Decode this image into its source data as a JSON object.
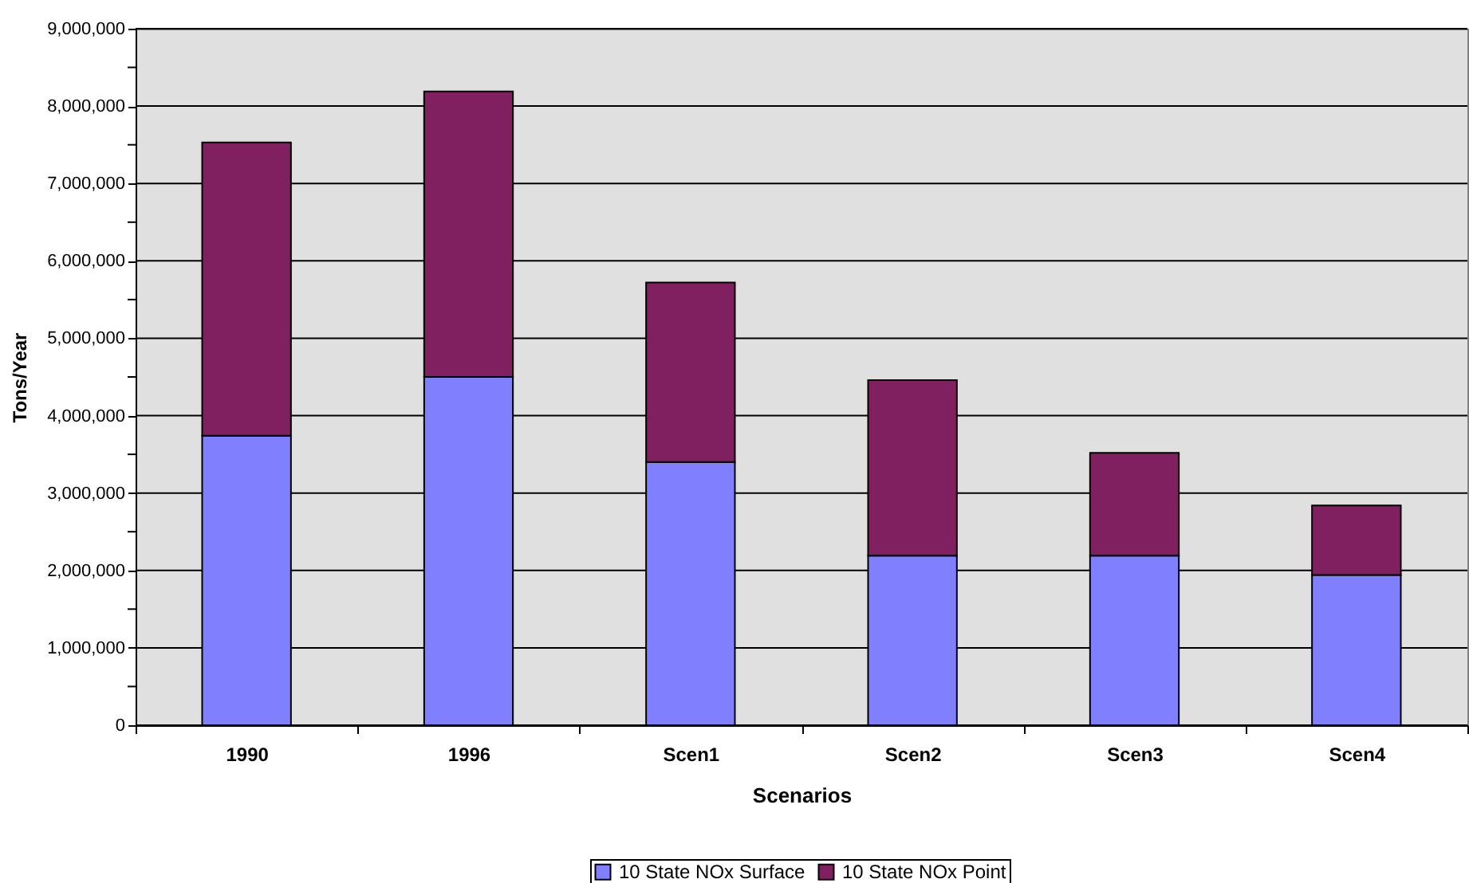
{
  "chart_data": {
    "type": "bar",
    "stacked": true,
    "xlabel": "Scenarios",
    "ylabel": "Tons/Year",
    "categories": [
      "1990",
      "1996",
      "Scen1",
      "Scen2",
      "Scen3",
      "Scen4"
    ],
    "series": [
      {
        "name": "10 State NOx Surface",
        "color": "#8080ff",
        "values": [
          3740000,
          4500000,
          3400000,
          2190000,
          2190000,
          1940000
        ]
      },
      {
        "name": "10 State NOx Point",
        "color": "#802060",
        "values": [
          3790000,
          3690000,
          2320000,
          2270000,
          1330000,
          900000
        ]
      }
    ],
    "ylim": [
      0,
      9000000
    ],
    "yticks": [
      0,
      {
        "value": 500000,
        "label": null
      },
      {
        "value": 1000000,
        "label": "1,000,000"
      },
      {
        "value": 1500000,
        "label": null
      },
      {
        "value": 2000000,
        "label": "2,000,000"
      },
      {
        "value": 2500000,
        "label": null
      },
      {
        "value": 3000000,
        "label": "3,000,000"
      },
      {
        "value": 3500000,
        "label": null
      },
      {
        "value": 4000000,
        "label": "4,000,000"
      },
      {
        "value": 4500000,
        "label": null
      },
      {
        "value": 5000000,
        "label": "5,000,000"
      },
      {
        "value": 5500000,
        "label": null
      },
      {
        "value": 6000000,
        "label": "6,000,000"
      },
      {
        "value": 6500000,
        "label": null
      },
      {
        "value": 7000000,
        "label": "7,000,000"
      },
      {
        "value": 7500000,
        "label": null
      },
      {
        "value": 8000000,
        "label": "8,000,000"
      },
      {
        "value": 8500000,
        "label": null
      },
      {
        "value": 9000000,
        "label": "9,000,000"
      }
    ],
    "grid": "y",
    "legend": "bottom"
  }
}
